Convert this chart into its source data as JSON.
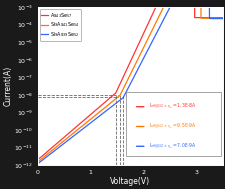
{
  "title": "",
  "xlabel": "Voltage(V)",
  "ylabel": "Current(A)",
  "xlim": [
    0,
    3.5
  ],
  "ylim_log": [
    -12,
    -3
  ],
  "background_color": "#1a1a1a",
  "plot_bg_color": "#ffffff",
  "series": [
    {
      "label": "As$_{43}$Se$_{57}$",
      "color": "#ff3333",
      "Vth": 3.0,
      "I_start": 2e-12,
      "I_off_half": 1.3e-08,
      "half_Vth": 1.48,
      "I_on": 0.00025
    },
    {
      "label": "Si$_9$As$_{41}$Se$_{54}$",
      "color": "#ff7700",
      "Vth": 3.12,
      "I_start": 1.5e-12,
      "I_off_half": 9.5e-09,
      "half_Vth": 1.56,
      "I_on": 0.00023
    },
    {
      "label": "Si$_9$As$_{39}$Se$_{52}$",
      "color": "#3366ff",
      "Vth": 3.28,
      "I_start": 1.2e-12,
      "I_off_half": 7e-09,
      "half_Vth": 1.62,
      "I_on": 0.00022
    }
  ],
  "annotation_labels": [
    "I$_{off@1/2\\times v_{th}}$ =1.3E-8A",
    "I$_{off@1/2\\times v_{th}}$ =9.5E-9A",
    "I$_{off@1/2\\times v_{th}}$ =7.0E-9A"
  ],
  "annotation_colors": [
    "#ff3333",
    "#ff7700",
    "#3366ff"
  ],
  "dashed_line_color": "#666666",
  "dashed_line_y": 1e-08,
  "dashed_v_lines": [
    1.48,
    1.56,
    1.62
  ]
}
